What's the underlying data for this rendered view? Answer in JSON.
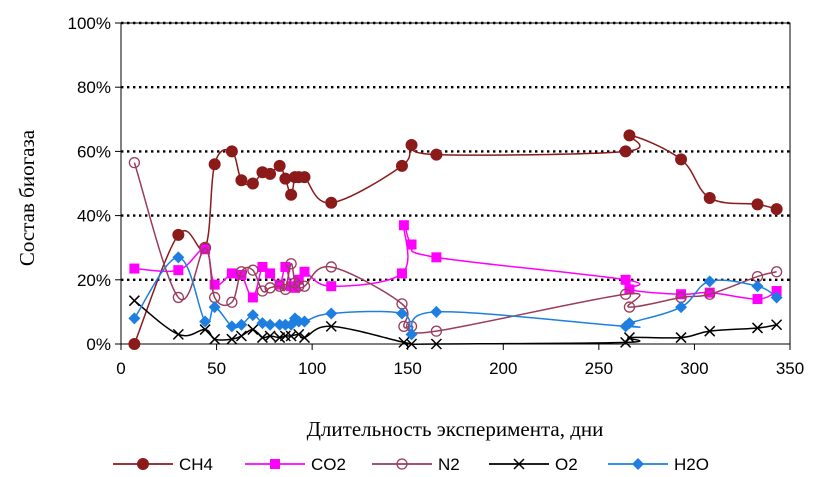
{
  "chart_data": {
    "type": "line",
    "title": "",
    "xlabel": "Длительность эксперимента,  дни",
    "ylabel": "Состав биогаза",
    "xlim": [
      0,
      350
    ],
    "ylim": [
      0,
      100
    ],
    "x_ticks": [
      0,
      50,
      100,
      150,
      200,
      250,
      300,
      350
    ],
    "y_ticks": [
      "0%",
      "20%",
      "40%",
      "60%",
      "80%",
      "100%"
    ],
    "grid": "horizontal dotted",
    "legend": "bottom",
    "series": [
      {
        "name": "CH4",
        "color": "#8B1A1A",
        "marker": "filled-circle",
        "x": [
          7,
          30,
          44,
          49,
          58,
          63,
          69,
          74,
          78,
          83,
          86,
          89,
          91,
          93,
          96,
          110,
          147,
          152,
          165,
          264,
          266,
          293,
          308,
          333,
          343
        ],
        "y": [
          0,
          34,
          30,
          56,
          60,
          51,
          50,
          53.5,
          53,
          55.5,
          51.5,
          46.5,
          52,
          52,
          52,
          44,
          55.5,
          62,
          59,
          60,
          65,
          57.5,
          45.5,
          43.5,
          42
        ]
      },
      {
        "name": "CO2",
        "color": "#FF00FF",
        "marker": "filled-square",
        "x": [
          7,
          30,
          44,
          49,
          58,
          63,
          69,
          74,
          78,
          83,
          86,
          89,
          91,
          93,
          96,
          110,
          147,
          148,
          152,
          165,
          264,
          266,
          293,
          308,
          333,
          343
        ],
        "y": [
          23.5,
          23,
          29.5,
          18.5,
          22,
          21.5,
          14.5,
          24,
          22,
          18.5,
          24,
          18,
          17.5,
          20,
          22.5,
          18,
          22,
          37,
          31,
          27,
          20,
          17,
          15.5,
          16,
          14,
          16.5
        ]
      },
      {
        "name": "N2",
        "color": "#9A3C5A",
        "marker": "open-circle",
        "x": [
          7,
          30,
          44,
          49,
          58,
          63,
          69,
          74,
          78,
          83,
          86,
          89,
          91,
          93,
          96,
          110,
          147,
          148,
          152,
          165,
          264,
          266,
          293,
          308,
          333,
          343
        ],
        "y": [
          56.5,
          14.5,
          30,
          14.5,
          13,
          22.5,
          23,
          16.5,
          17.5,
          18,
          17,
          25,
          19,
          18,
          18,
          24,
          12.5,
          5.5,
          5.5,
          4,
          15.5,
          11.5,
          14.5,
          15.5,
          21,
          22.5
        ]
      },
      {
        "name": "O2",
        "color": "#000000",
        "marker": "x",
        "x": [
          7,
          30,
          44,
          49,
          58,
          63,
          69,
          74,
          78,
          83,
          86,
          89,
          93,
          96,
          110,
          148,
          152,
          165,
          264,
          266,
          293,
          308,
          333,
          343
        ],
        "y": [
          13.5,
          3,
          4.5,
          1.5,
          1.5,
          2.5,
          4.5,
          2,
          2.5,
          2,
          2.5,
          2.5,
          3,
          2,
          5.5,
          0.5,
          0,
          0,
          0.5,
          2,
          2,
          4,
          5,
          6
        ]
      },
      {
        "name": "H2O",
        "color": "#1E7FE0",
        "marker": "filled-diamond",
        "x": [
          7,
          30,
          44,
          49,
          58,
          63,
          69,
          74,
          78,
          83,
          86,
          89,
          91,
          93,
          96,
          110,
          147,
          152,
          165,
          264,
          266,
          293,
          308,
          333,
          343
        ],
        "y": [
          8,
          27,
          7,
          11.5,
          5.5,
          6,
          9,
          6.5,
          6,
          6,
          6,
          6,
          8,
          7,
          7,
          9.5,
          9.5,
          3,
          10,
          5.5,
          6.5,
          11.5,
          19.5,
          18,
          14.5
        ]
      }
    ]
  }
}
